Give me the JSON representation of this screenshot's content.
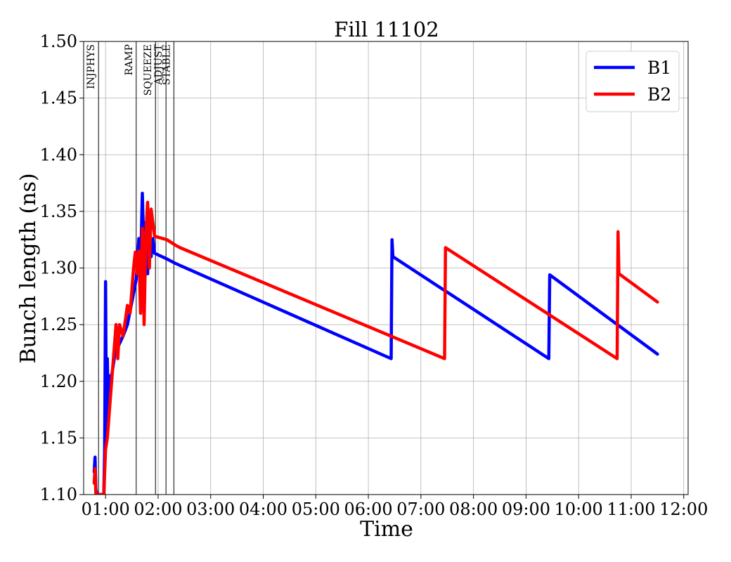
{
  "chart_data": {
    "type": "line",
    "title": "Fill 11102",
    "xlabel": "Time",
    "ylabel": "Bunch length (ns)",
    "xlim": [
      "00:35",
      "12:05"
    ],
    "ylim": [
      1.1,
      1.5
    ],
    "x_ticks": [
      "01:00",
      "02:00",
      "03:00",
      "04:00",
      "05:00",
      "06:00",
      "07:00",
      "08:00",
      "09:00",
      "10:00",
      "11:00",
      "12:00"
    ],
    "y_ticks": [
      "1.10",
      "1.15",
      "1.20",
      "1.25",
      "1.30",
      "1.35",
      "1.40",
      "1.45",
      "1.50"
    ],
    "grid": true,
    "legend_position": "top-right",
    "beam_modes": [
      {
        "label": "INJPHYS",
        "time": "00:52"
      },
      {
        "label": "RAMP",
        "time": "01:35"
      },
      {
        "label": "SQUEEZE",
        "time": "01:57"
      },
      {
        "label": "ADJUST",
        "time": "02:09"
      },
      {
        "label": "STABLE",
        "time": "02:18"
      }
    ],
    "series": [
      {
        "name": "B1",
        "color": "#0000ff",
        "points": [
          [
            "00:47",
            1.12
          ],
          [
            "00:48",
            1.133
          ],
          [
            "00:49",
            1.105
          ],
          [
            "00:50",
            1.1
          ],
          [
            "00:58",
            1.1
          ],
          [
            "00:59",
            1.14
          ],
          [
            "01:00",
            1.288
          ],
          [
            "01:01",
            1.15
          ],
          [
            "01:02",
            1.22
          ],
          [
            "01:03",
            1.18
          ],
          [
            "01:04",
            1.205
          ],
          [
            "01:06",
            1.2
          ],
          [
            "01:10",
            1.22
          ],
          [
            "01:12",
            1.25
          ],
          [
            "01:14",
            1.23
          ],
          [
            "01:20",
            1.24
          ],
          [
            "01:25",
            1.25
          ],
          [
            "01:30",
            1.27
          ],
          [
            "01:35",
            1.29
          ],
          [
            "01:38",
            1.326
          ],
          [
            "01:40",
            1.3
          ],
          [
            "01:42",
            1.366
          ],
          [
            "01:44",
            1.31
          ],
          [
            "01:46",
            1.34
          ],
          [
            "01:48",
            1.295
          ],
          [
            "01:50",
            1.33
          ],
          [
            "01:52",
            1.31
          ],
          [
            "01:54",
            1.326
          ],
          [
            "01:56",
            1.313
          ],
          [
            "02:10",
            1.308
          ],
          [
            "02:20",
            1.304
          ],
          [
            "06:26",
            1.22
          ],
          [
            "06:27",
            1.325
          ],
          [
            "06:28",
            1.31
          ],
          [
            "09:26",
            1.22
          ],
          [
            "09:27",
            1.294
          ],
          [
            "11:30",
            1.224
          ]
        ]
      },
      {
        "name": "B2",
        "color": "#ff0000",
        "points": [
          [
            "00:47",
            1.11
          ],
          [
            "00:48",
            1.123
          ],
          [
            "00:49",
            1.1
          ],
          [
            "00:58",
            1.1
          ],
          [
            "01:00",
            1.14
          ],
          [
            "01:02",
            1.15
          ],
          [
            "01:05",
            1.18
          ],
          [
            "01:08",
            1.21
          ],
          [
            "01:12",
            1.25
          ],
          [
            "01:14",
            1.22
          ],
          [
            "01:16",
            1.25
          ],
          [
            "01:20",
            1.24
          ],
          [
            "01:25",
            1.267
          ],
          [
            "01:28",
            1.26
          ],
          [
            "01:32",
            1.3
          ],
          [
            "01:34",
            1.314
          ],
          [
            "01:36",
            1.295
          ],
          [
            "01:38",
            1.315
          ],
          [
            "01:40",
            1.26
          ],
          [
            "01:42",
            1.335
          ],
          [
            "01:44",
            1.25
          ],
          [
            "01:46",
            1.33
          ],
          [
            "01:48",
            1.358
          ],
          [
            "01:50",
            1.3
          ],
          [
            "01:52",
            1.352
          ],
          [
            "01:54",
            1.34
          ],
          [
            "01:56",
            1.328
          ],
          [
            "02:10",
            1.325
          ],
          [
            "02:20",
            1.32
          ],
          [
            "02:25",
            1.318
          ],
          [
            "07:27",
            1.22
          ],
          [
            "07:28",
            1.318
          ],
          [
            "10:44",
            1.22
          ],
          [
            "10:45",
            1.332
          ],
          [
            "10:46",
            1.295
          ],
          [
            "11:30",
            1.27
          ]
        ]
      }
    ]
  }
}
